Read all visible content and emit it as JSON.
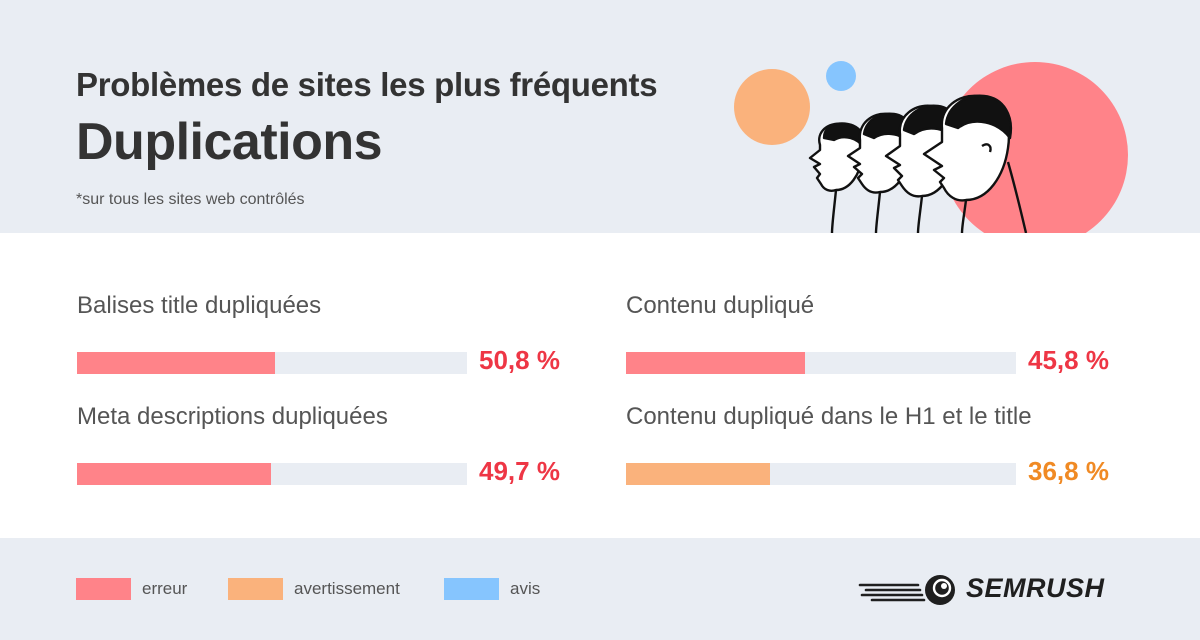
{
  "header": {
    "title": "Problèmes de sites les plus fréquents",
    "subtitle": "Duplications",
    "note": "*sur tous les sites web contrôlés"
  },
  "colors": {
    "erreur": "#ff8389",
    "avertissement": "#fab27c",
    "avis": "#86c5fe",
    "value_erreur": "#ee3645",
    "value_avertissement": "#f08a24"
  },
  "chart_data": {
    "type": "bar",
    "orientation": "horizontal",
    "categories": [
      "Balises title dupliquées",
      "Meta descriptions dupliquées",
      "Contenu dupliqué",
      "Contenu dupliqué dans le H1 et le title"
    ],
    "values": [
      50.8,
      49.7,
      45.8,
      36.8
    ],
    "value_labels": [
      "50,8 %",
      "49,7 %",
      "45,8 %",
      "36,8 %"
    ],
    "severity": [
      "erreur",
      "erreur",
      "erreur",
      "avertissement"
    ],
    "xlim": [
      0,
      100
    ],
    "unit": "%",
    "legend": [
      "erreur",
      "avertissement",
      "avis"
    ],
    "legend_position": "bottom-left"
  },
  "legend": [
    {
      "label": "erreur",
      "color": "#ff8389"
    },
    {
      "label": "avertissement",
      "color": "#fab27c"
    },
    {
      "label": "avis",
      "color": "#86c5fe"
    }
  ],
  "brand": {
    "logo_text": "SEMRUSH",
    "logo_icon": "semrush-fireball-icon"
  },
  "illustration": {
    "icon": "people-profiles-illustration"
  }
}
